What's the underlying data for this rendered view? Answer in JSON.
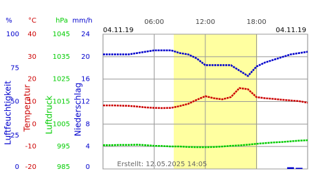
{
  "header": {
    "left_date": "04.11.19",
    "right_date": "04.11.19",
    "created": "Erstellt: 12.05.2025 14:05"
  },
  "chart_data": {
    "type": "line",
    "xlim": [
      0,
      24
    ],
    "xticks": [
      {
        "value": 6,
        "label": "06:00"
      },
      {
        "value": 12,
        "label": "12:00"
      },
      {
        "value": 18,
        "label": "18:00"
      }
    ],
    "highlight": [
      8.3,
      18.1
    ],
    "grid": true,
    "x": [
      0,
      1,
      2,
      3,
      4,
      5,
      6,
      7,
      8,
      9,
      10,
      11,
      12,
      13,
      14,
      15,
      16,
      17,
      18,
      19,
      20,
      21,
      22,
      23,
      24
    ],
    "axes": [
      {
        "unit": "%",
        "title": "Luftfeuchtigkeit",
        "color": "#0000cc",
        "ylim": [
          0,
          100
        ],
        "yticks": [
          0,
          25,
          50,
          75,
          100
        ]
      },
      {
        "unit": "°C",
        "title": "Temperatur",
        "color": "#cc0000",
        "ylim": [
          -20,
          40
        ],
        "yticks": [
          -20,
          -10,
          0,
          10,
          20,
          30,
          40
        ]
      },
      {
        "unit": "hPa",
        "title": "Luftdruck",
        "color": "#00cc00",
        "ylim": [
          985,
          1045
        ],
        "yticks": [
          985,
          995,
          1005,
          1015,
          1025,
          1035,
          1045
        ]
      },
      {
        "unit": "mm/h",
        "title": "Niederschlag",
        "color": "#0000cc",
        "ylim": [
          0,
          24
        ],
        "yticks": [
          0,
          4,
          8,
          12,
          16,
          20,
          24
        ]
      }
    ],
    "series": [
      {
        "axis": 0,
        "color": "#0000cc",
        "values": [
          85,
          85,
          85,
          85,
          86,
          87,
          88,
          88,
          88,
          86,
          85,
          82,
          77,
          77,
          77,
          77,
          73,
          69,
          76,
          79,
          81,
          83,
          85,
          86,
          87
        ]
      },
      {
        "axis": 1,
        "color": "#cc0000",
        "values": [
          8.3,
          8.3,
          8.2,
          8.1,
          7.8,
          7.4,
          7.2,
          7.1,
          7.2,
          8,
          9,
          10.8,
          12.4,
          11.5,
          11,
          12,
          16,
          15.5,
          12,
          11.5,
          11.2,
          10.8,
          10.5,
          10.2,
          9.5
        ]
      },
      {
        "axis": 2,
        "color": "#00cc00",
        "values": [
          995.6,
          995.6,
          995.7,
          995.7,
          995.8,
          995.6,
          995.3,
          995.2,
          995,
          995,
          994.8,
          994.7,
          994.7,
          994.8,
          995,
          995.3,
          995.5,
          995.8,
          996.2,
          996.5,
          996.8,
          997,
          997.3,
          997.6,
          997.8
        ]
      },
      {
        "axis": 3,
        "color": "#0000cc",
        "type": "bar",
        "values": [
          0,
          0,
          0,
          0,
          0,
          0,
          0,
          0,
          0,
          0,
          0,
          0,
          0,
          0,
          0,
          0,
          0,
          0,
          0,
          0,
          0,
          0,
          0.3,
          0.2,
          0
        ]
      }
    ]
  }
}
